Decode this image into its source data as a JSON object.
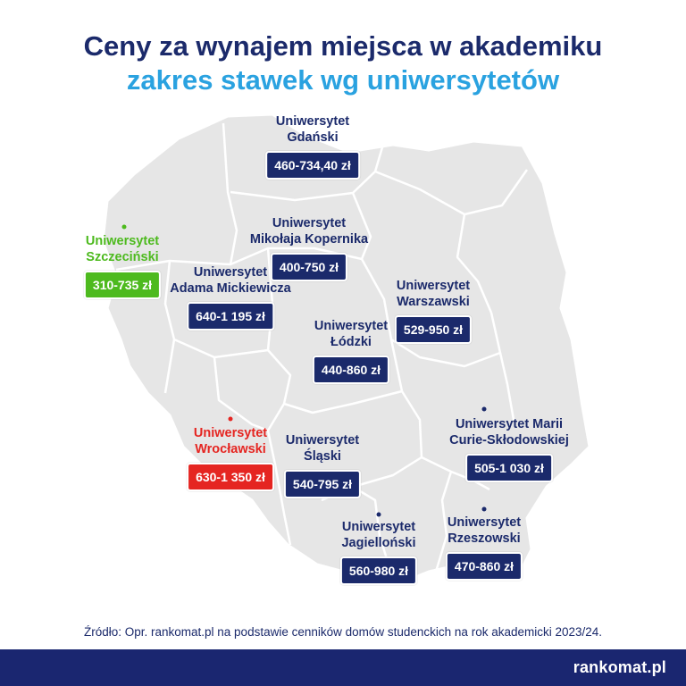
{
  "title": {
    "line1": "Ceny za wynajem miejsca w akademiku",
    "line2": "zakres stawek wg uniwersytetów"
  },
  "universities": [
    {
      "line1": "Uniwersytet",
      "line2": "Gdański",
      "price": "460-734,40 zł",
      "color": "#1b2a6b"
    },
    {
      "line1": "Uniwersytet",
      "line2": "Szczeciński",
      "price": "310-735 zł",
      "color": "#4dba1e"
    },
    {
      "line1": "Uniwersytet",
      "line2": "Mikołaja Kopernika",
      "price": "400-750 zł",
      "color": "#1b2a6b"
    },
    {
      "line1": "Uniwersytet",
      "line2": "Adama Mickiewicza",
      "price": "640-1 195 zł",
      "color": "#1b2a6b"
    },
    {
      "line1": "Uniwersytet",
      "line2": "Warszawski",
      "price": "529-950 zł",
      "color": "#1b2a6b"
    },
    {
      "line1": "Uniwersytet",
      "line2": "Łódzki",
      "price": "440-860 zł",
      "color": "#1b2a6b"
    },
    {
      "line1": "Uniwersytet Marii",
      "line2": "Curie-Skłodowskiej",
      "price": "505-1 030 zł",
      "color": "#1b2a6b"
    },
    {
      "line1": "Uniwersytet",
      "line2": "Wrocławski",
      "price": "630-1 350 zł",
      "color": "#e52521"
    },
    {
      "line1": "Uniwersytet",
      "line2": "Śląski",
      "price": "540-795 zł",
      "color": "#1b2a6b"
    },
    {
      "line1": "Uniwersytet",
      "line2": "Jagielloński",
      "price": "560-980 zł",
      "color": "#1b2a6b"
    },
    {
      "line1": "Uniwersytet",
      "line2": "Rzeszowski",
      "price": "470-860 zł",
      "color": "#1b2a6b"
    }
  ],
  "source": "Źródło: Opr. rankomat.pl na podstawie cenników domów studenckich na rok akademicki 2023/24.",
  "brand": "rankomat.pl",
  "colors": {
    "navy": "#1b2a6b",
    "title_accent": "#2aa2e0",
    "highlight_low": "#4dba1e",
    "highlight_high": "#e52521",
    "map_fill": "#e6e6e6",
    "footer": "#1a2670"
  }
}
